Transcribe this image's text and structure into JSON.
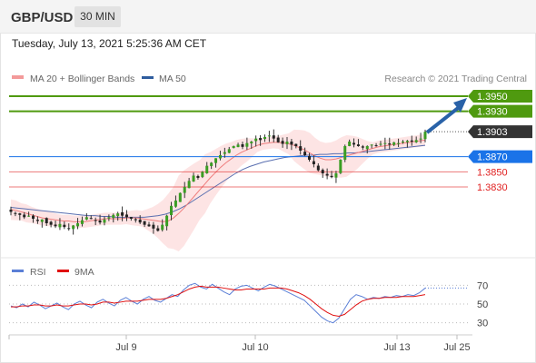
{
  "header": {
    "symbol": "GBP/USD",
    "timeframe": "30 MIN",
    "timestamp": "Tuesday, July 13, 2021 5:25:36 AM CET"
  },
  "legend": {
    "ma_bb_label": "MA 20 + Bollinger Bands",
    "ma_bb_color": "#f39a9a",
    "ma50_label": "MA 50",
    "ma50_color": "#2f5d9e",
    "credit": "Research © 2021 Trading Central"
  },
  "chart_data": [
    {
      "type": "candlestick",
      "title": "GBP/USD",
      "x_ticks": [
        "Jul 9",
        "Jul 10",
        "Jul 13",
        "Jul 25"
      ],
      "price_levels": [
        {
          "value": 1.395,
          "label": "1.3950",
          "kind": "resistance",
          "color": "#4f9a0f"
        },
        {
          "value": 1.393,
          "label": "1.3930",
          "kind": "resistance",
          "color": "#4f9a0f"
        },
        {
          "value": 1.3903,
          "label": "1.3903",
          "kind": "last",
          "color": "#333333"
        },
        {
          "value": 1.387,
          "label": "1.3870",
          "kind": "pivot",
          "color": "#1a73e8"
        },
        {
          "value": 1.385,
          "label": "1.3850",
          "kind": "support",
          "color": "#e02020"
        },
        {
          "value": 1.383,
          "label": "1.3830",
          "kind": "support",
          "color": "#e02020"
        }
      ],
      "close_series": [
        1.3797,
        1.3795,
        1.3793,
        1.379,
        1.3792,
        1.3788,
        1.3785,
        1.3787,
        1.3782,
        1.378,
        1.3778,
        1.3781,
        1.3777,
        1.3775,
        1.3779,
        1.3782,
        1.3786,
        1.379,
        1.3788,
        1.3785,
        1.3783,
        1.3787,
        1.379,
        1.3793,
        1.3795,
        1.3792,
        1.379,
        1.3788,
        1.3786,
        1.3783,
        1.378,
        1.3778,
        1.3775,
        1.3772,
        1.378,
        1.3792,
        1.3805,
        1.3812,
        1.3822,
        1.383,
        1.3838,
        1.3845,
        1.3842,
        1.385,
        1.3858,
        1.3862,
        1.3868,
        1.3872,
        1.3876,
        1.388,
        1.3884,
        1.3886,
        1.3883,
        1.3888,
        1.389,
        1.3894,
        1.3892,
        1.3896,
        1.3898,
        1.3894,
        1.3889,
        1.3887,
        1.389,
        1.3886,
        1.3884,
        1.3878,
        1.3872,
        1.3866,
        1.386,
        1.3852,
        1.3848,
        1.3845,
        1.3843,
        1.3848,
        1.3866,
        1.3884,
        1.389,
        1.3886,
        1.3884,
        1.3882,
        1.3884,
        1.3886,
        1.3885,
        1.3887,
        1.3888,
        1.3886,
        1.3889,
        1.3888,
        1.389,
        1.3891,
        1.389,
        1.3892,
        1.3894,
        1.3903
      ],
      "ma20_series": [
        1.38,
        1.3799,
        1.3797,
        1.3795,
        1.3793,
        1.3791,
        1.3789,
        1.3788,
        1.3787,
        1.3786,
        1.3785,
        1.3785,
        1.3784,
        1.3784,
        1.3784,
        1.3785,
        1.3786,
        1.3787,
        1.3788,
        1.3788,
        1.3788,
        1.3788,
        1.3789,
        1.3789,
        1.3789,
        1.3788,
        1.3787,
        1.3786,
        1.3785,
        1.3784,
        1.3785,
        1.3789,
        1.3795,
        1.3802,
        1.381,
        1.3818,
        1.3826,
        1.3834,
        1.3842,
        1.3849,
        1.3856,
        1.3862,
        1.3867,
        1.3872,
        1.3876,
        1.3879,
        1.3882,
        1.3885,
        1.3887,
        1.3888,
        1.3889,
        1.3889,
        1.3888,
        1.3887,
        1.3885,
        1.3882,
        1.3879,
        1.3875,
        1.3871,
        1.3868,
        1.3866,
        1.3866,
        1.3867,
        1.3869,
        1.3871,
        1.3873,
        1.3875,
        1.3877,
        1.3879,
        1.3881,
        1.3883,
        1.3884,
        1.3885,
        1.3886,
        1.3887,
        1.3888,
        1.3889,
        1.389,
        1.3891,
        1.3892
      ],
      "ma50_series": [
        1.3803,
        1.3802,
        1.3801,
        1.38,
        1.3799,
        1.3798,
        1.3797,
        1.3796,
        1.3795,
        1.3794,
        1.3793,
        1.3792,
        1.3792,
        1.3791,
        1.3791,
        1.379,
        1.379,
        1.379,
        1.379,
        1.379,
        1.3791,
        1.3792,
        1.3794,
        1.3797,
        1.3801,
        1.3806,
        1.3812,
        1.3818,
        1.3824,
        1.383,
        1.3836,
        1.3842,
        1.3848,
        1.3853,
        1.3857,
        1.386,
        1.3863,
        1.3865,
        1.3867,
        1.3869,
        1.387,
        1.3871,
        1.3872,
        1.3872,
        1.3873,
        1.3873,
        1.3874,
        1.3874,
        1.3875,
        1.3875,
        1.3876,
        1.3877,
        1.3878,
        1.3879,
        1.388,
        1.3881,
        1.3882,
        1.3883,
        1.3884,
        1.3885
      ],
      "forecast_arrow": {
        "from": 1.3903,
        "to": 1.395,
        "direction": "up"
      }
    },
    {
      "type": "line",
      "title": "",
      "series": [
        {
          "name": "RSI",
          "color": "#5b7fd6",
          "values": [
            48,
            46,
            50,
            47,
            52,
            49,
            45,
            48,
            51,
            47,
            44,
            50,
            53,
            49,
            46,
            52,
            55,
            51,
            48,
            54,
            57,
            53,
            50,
            55,
            58,
            54,
            52,
            56,
            60,
            58,
            65,
            70,
            72,
            68,
            66,
            71,
            67,
            63,
            60,
            66,
            69,
            70,
            67,
            64,
            68,
            71,
            69,
            66,
            63,
            60,
            57,
            54,
            48,
            42,
            36,
            32,
            30,
            35,
            45,
            55,
            60,
            58,
            55,
            57,
            56,
            58,
            57,
            59,
            58,
            60,
            59,
            62,
            67
          ]
        },
        {
          "name": "9MA",
          "color": "#e01010",
          "values": [
            47,
            47,
            48,
            48,
            49,
            49,
            48,
            48,
            49,
            48,
            48,
            49,
            50,
            50,
            49,
            50,
            52,
            52,
            51,
            52,
            53,
            53,
            53,
            54,
            55,
            55,
            55,
            56,
            58,
            60,
            63,
            66,
            68,
            69,
            68,
            68,
            68,
            67,
            66,
            65,
            65,
            66,
            66,
            66,
            66,
            67,
            67,
            67,
            66,
            64,
            62,
            59,
            55,
            50,
            45,
            41,
            38,
            37,
            39,
            44,
            49,
            53,
            55,
            56,
            56,
            57,
            57,
            57,
            58,
            58,
            58,
            59,
            60
          ]
        }
      ],
      "y_ticks": [
        70,
        50,
        30
      ],
      "ylim": [
        20,
        80
      ]
    }
  ]
}
